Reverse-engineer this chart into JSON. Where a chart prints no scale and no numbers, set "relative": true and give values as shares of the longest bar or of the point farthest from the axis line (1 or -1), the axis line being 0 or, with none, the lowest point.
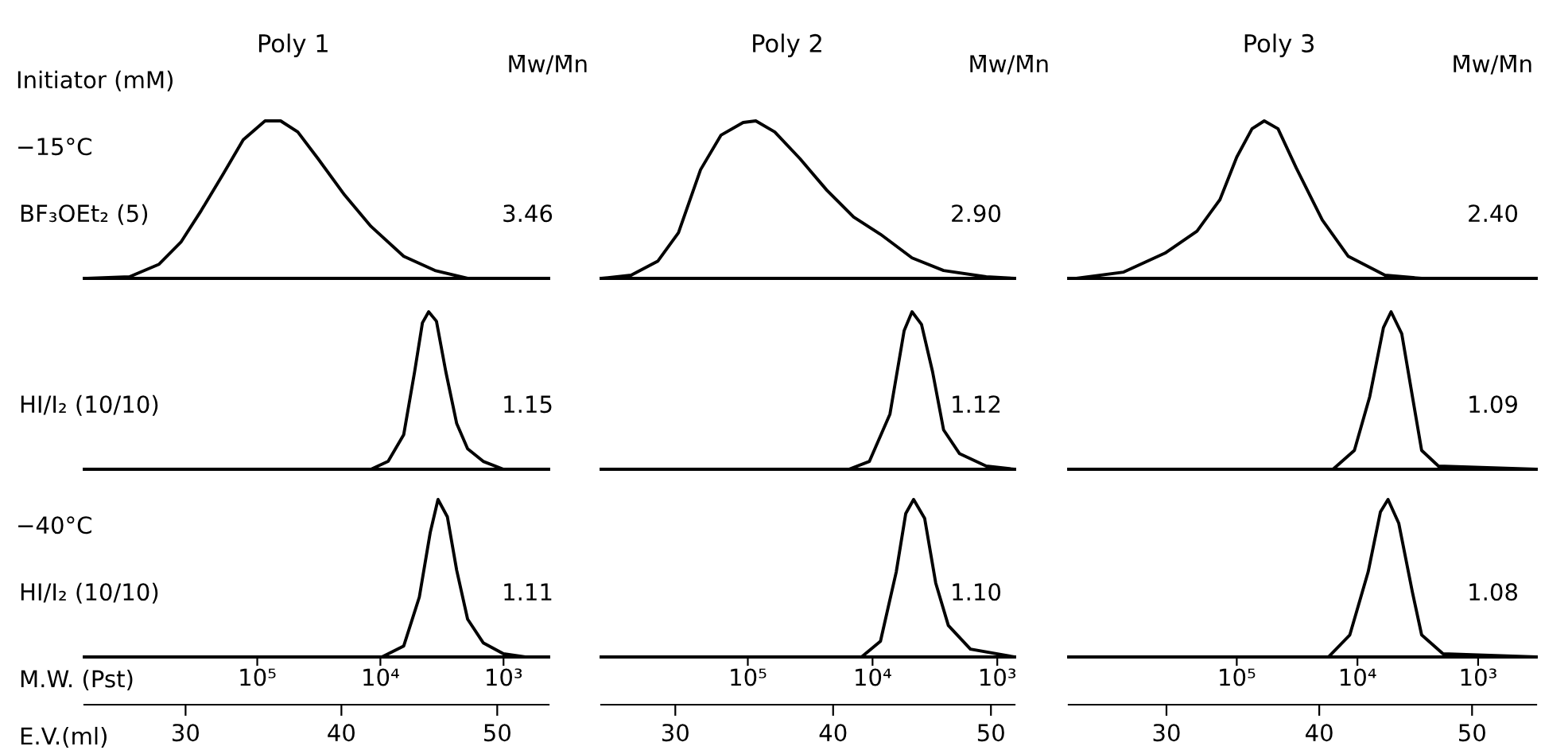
{
  "chart_data": [
    {
      "type": "line",
      "title": "Poly 1",
      "ylabel": "BF₃OEt₂ (5)",
      "relative": true,
      "xlim": [
        23.5,
        53.3
      ],
      "annotations": [
        "Initiator (mM)",
        "−15°C",
        "M̄w/M̄n",
        "3.46"
      ],
      "series": [
        {
          "color": "#000000",
          "x": [
            23.7,
            26.4,
            28.3,
            29.7,
            31.0,
            32.4,
            33.7,
            35.1,
            36.1,
            37.2,
            38.5,
            40.2,
            41.9,
            44.0,
            46.0,
            48.1,
            51.8,
            53.3
          ],
          "values": [
            0,
            0.01,
            0.09,
            0.23,
            0.43,
            0.66,
            0.88,
            1,
            1,
            0.93,
            0.76,
            0.53,
            0.33,
            0.14,
            0.05,
            0,
            0,
            0
          ]
        }
      ]
    },
    {
      "type": "line",
      "title": "Poly 2",
      "relative": true,
      "xlim": [
        25.3,
        51.5
      ],
      "annotations": [
        "M̄w/M̄n",
        "2.90"
      ],
      "series": [
        {
          "color": "#000000",
          "x": [
            25.3,
            27.2,
            28.9,
            30.2,
            31.6,
            32.9,
            34.3,
            35.1,
            36.3,
            37.9,
            39.6,
            41.3,
            43.0,
            45.0,
            47.0,
            49.7,
            51.5
          ],
          "values": [
            0,
            0.02,
            0.11,
            0.29,
            0.69,
            0.91,
            0.99,
            1,
            0.93,
            0.76,
            0.56,
            0.39,
            0.28,
            0.13,
            0.05,
            0.01,
            0
          ]
        }
      ]
    },
    {
      "type": "line",
      "title": "Poly 3",
      "relative": true,
      "xlim": [
        23.6,
        54.2
      ],
      "annotations": [
        "M̄w/M̄n",
        "2.40"
      ],
      "series": [
        {
          "color": "#000000",
          "x": [
            24.1,
            27.2,
            29.9,
            32.0,
            33.5,
            34.6,
            35.6,
            36.4,
            37.3,
            38.5,
            40.2,
            41.9,
            44.3,
            46.7,
            54.2
          ],
          "values": [
            0,
            0.04,
            0.16,
            0.3,
            0.5,
            0.77,
            0.95,
            1,
            0.95,
            0.7,
            0.37,
            0.14,
            0.02,
            0,
            0
          ]
        }
      ]
    },
    {
      "type": "line",
      "ylabel": "HI/I₂ (10/10)",
      "relative": true,
      "xlim": [
        23.5,
        53.3
      ],
      "annotations": [
        "1.15"
      ],
      "series": [
        {
          "color": "#000000",
          "x": [
            23.7,
            41.9,
            43.0,
            44.0,
            44.7,
            45.2,
            45.6,
            46.1,
            46.7,
            47.4,
            48.1,
            49.1,
            50.4,
            53.3
          ],
          "values": [
            0,
            0,
            0.05,
            0.22,
            0.62,
            0.93,
            1,
            0.94,
            0.62,
            0.29,
            0.13,
            0.05,
            0,
            0
          ]
        }
      ]
    },
    {
      "type": "line",
      "relative": true,
      "xlim": [
        25.3,
        51.5
      ],
      "annotations": [
        "1.12"
      ],
      "series": [
        {
          "color": "#000000",
          "x": [
            25.3,
            41.0,
            42.3,
            43.6,
            44.5,
            45.0,
            45.6,
            46.3,
            47.0,
            48.0,
            49.7,
            51.5
          ],
          "values": [
            0,
            0,
            0.05,
            0.35,
            0.88,
            1,
            0.92,
            0.62,
            0.25,
            0.1,
            0.02,
            0
          ]
        }
      ]
    },
    {
      "type": "line",
      "relative": true,
      "xlim": [
        23.6,
        54.2
      ],
      "annotations": [
        "1.09"
      ],
      "series": [
        {
          "color": "#000000",
          "x": [
            24.1,
            40.9,
            42.3,
            43.3,
            44.2,
            44.7,
            45.4,
            46.1,
            46.7,
            47.8,
            54.2
          ],
          "values": [
            0,
            0,
            0.12,
            0.46,
            0.9,
            1,
            0.86,
            0.46,
            0.12,
            0.02,
            0
          ]
        }
      ]
    },
    {
      "type": "line",
      "ylabel": "HI/I₂ (10/10)",
      "xlabel": "E.V.(ml)",
      "x2label": "M.W. (Pst)",
      "relative": true,
      "log": "x2",
      "xlim": [
        23.5,
        53.3
      ],
      "xticks": [
        30,
        40,
        50
      ],
      "x2lim": [
        2540000,
        430
      ],
      "x2ticks": [
        {
          "value": 100000,
          "label": "10⁵"
        },
        {
          "value": 10000,
          "label": "10⁴"
        },
        {
          "value": 1000,
          "label": "10³"
        }
      ],
      "annotations": [
        "−40°C",
        "1.11"
      ],
      "series": [
        {
          "color": "#000000",
          "x": [
            23.7,
            42.6,
            44.0,
            45.0,
            45.7,
            46.2,
            46.8,
            47.4,
            48.1,
            49.1,
            50.4,
            51.8,
            53.3
          ],
          "values": [
            0,
            0,
            0.07,
            0.38,
            0.79,
            1,
            0.89,
            0.55,
            0.24,
            0.09,
            0.02,
            0,
            0
          ]
        }
      ]
    },
    {
      "type": "line",
      "relative": true,
      "log": "x2",
      "xlim": [
        25.3,
        51.5
      ],
      "xticks": [
        30,
        40,
        50
      ],
      "x2lim": [
        1500000,
        726
      ],
      "x2ticks": [
        {
          "value": 100000,
          "label": "10⁵"
        },
        {
          "value": 10000,
          "label": "10⁴"
        },
        {
          "value": 1000,
          "label": "10³"
        }
      ],
      "annotations": [
        "1.10"
      ],
      "series": [
        {
          "color": "#000000",
          "x": [
            25.3,
            41.8,
            43.0,
            44.0,
            44.6,
            45.1,
            45.8,
            46.5,
            47.3,
            48.7,
            51.5
          ],
          "values": [
            0,
            0,
            0.1,
            0.54,
            0.91,
            1,
            0.88,
            0.47,
            0.2,
            0.05,
            0
          ]
        }
      ]
    },
    {
      "type": "line",
      "relative": true,
      "log": "x2",
      "xlim": [
        23.6,
        54.2
      ],
      "xticks": [
        30,
        40,
        50
      ],
      "x2lim": [
        2470000,
        330
      ],
      "x2ticks": [
        {
          "value": 100000,
          "label": "10⁵"
        },
        {
          "value": 10000,
          "label": "10⁴"
        },
        {
          "value": 1000,
          "label": "10³"
        }
      ],
      "annotations": [
        "1.08"
      ],
      "series": [
        {
          "color": "#000000",
          "x": [
            24.1,
            40.6,
            42.0,
            43.2,
            44.0,
            44.5,
            45.2,
            46.1,
            46.7,
            48.1,
            54.2
          ],
          "values": [
            0,
            0,
            0.14,
            0.54,
            0.92,
            1,
            0.85,
            0.41,
            0.14,
            0.02,
            0
          ]
        }
      ]
    }
  ]
}
